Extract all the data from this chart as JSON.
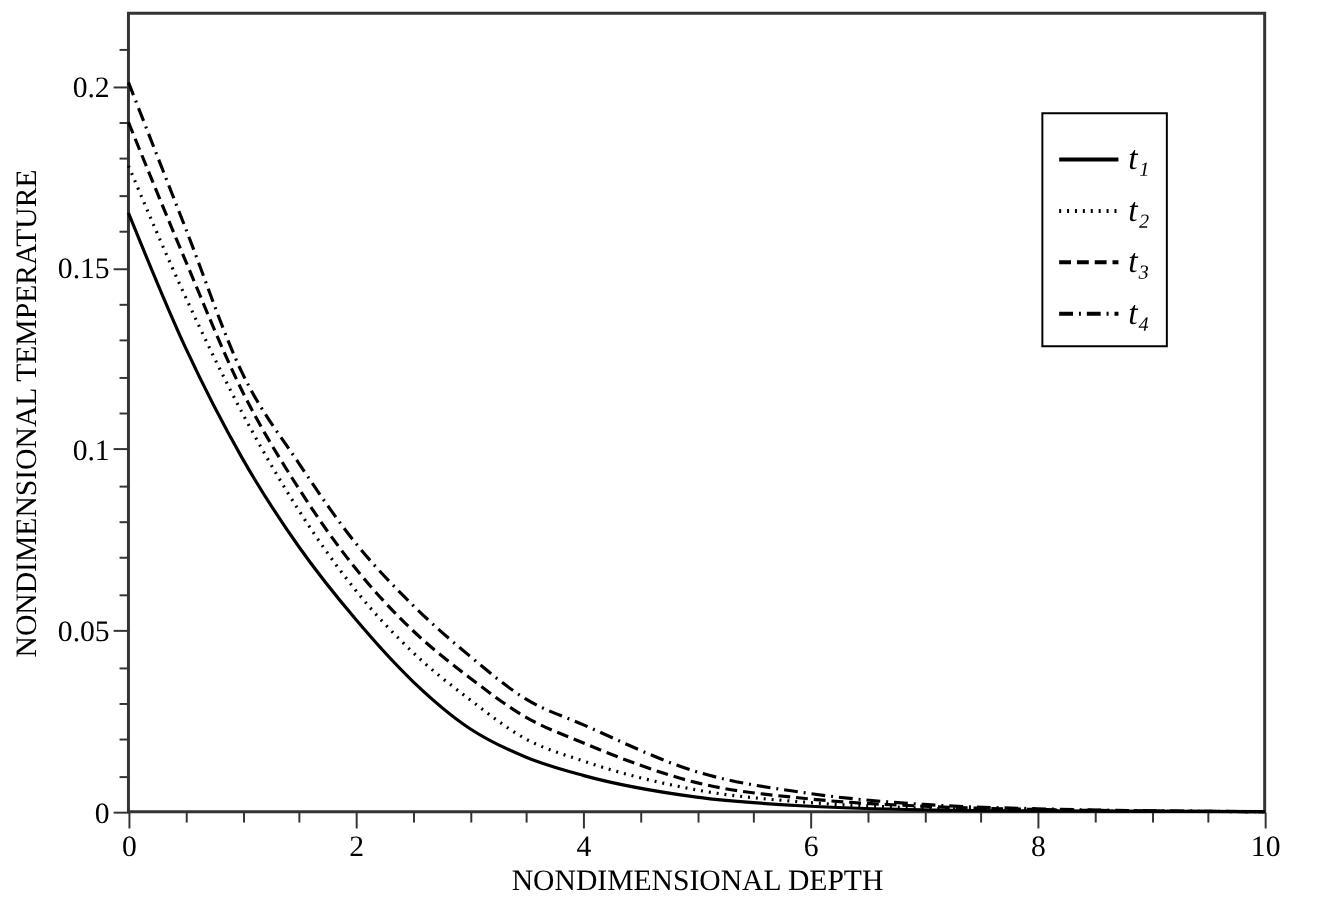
{
  "chart_data": {
    "type": "line",
    "xlabel": "NONDIMENSIONAL DEPTH",
    "ylabel": "NONDIMENSIONAL TEMPERATURE",
    "x": [
      0,
      0.5,
      1,
      1.5,
      2,
      2.5,
      3,
      3.5,
      4,
      5,
      6,
      7,
      8,
      10
    ],
    "series": [
      {
        "name": "t₁",
        "color": "#000000",
        "line_style": "solid",
        "values": [
          0.165,
          0.128,
          0.0975,
          0.073,
          0.053,
          0.036,
          0.023,
          0.015,
          0.01,
          0.004,
          0.0015,
          0.0005,
          0.0002,
          0
        ]
      },
      {
        "name": "t₂",
        "color": "#000000",
        "line_style": "dotted",
        "values": [
          0.178,
          0.142,
          0.11,
          0.083,
          0.061,
          0.044,
          0.031,
          0.02,
          0.014,
          0.006,
          0.0025,
          0.001,
          0.0004,
          0
        ]
      },
      {
        "name": "t₃",
        "color": "#000000",
        "line_style": "dashed",
        "values": [
          0.19,
          0.152,
          0.116,
          0.089,
          0.067,
          0.05,
          0.037,
          0.026,
          0.019,
          0.008,
          0.0035,
          0.0015,
          0.0006,
          0
        ]
      },
      {
        "name": "t₄",
        "color": "#000000",
        "line_style": "dashdot",
        "values": [
          0.201,
          0.161,
          0.121,
          0.096,
          0.074,
          0.057,
          0.043,
          0.031,
          0.024,
          0.011,
          0.005,
          0.002,
          0.0008,
          0
        ]
      }
    ],
    "xlim": [
      0,
      10
    ],
    "ylim": [
      0,
      0.22
    ],
    "xticks": [
      0,
      {
        "value": 0.5,
        "label": null
      },
      {
        "value": 1,
        "label": null
      },
      {
        "value": 1.5,
        "label": null
      },
      2,
      {
        "value": 2.5,
        "label": null
      },
      {
        "value": 3,
        "label": null
      },
      {
        "value": 3.5,
        "label": null
      },
      4,
      {
        "value": 4.5,
        "label": null
      },
      {
        "value": 5,
        "label": null
      },
      {
        "value": 5.5,
        "label": null
      },
      6,
      {
        "value": 6.5,
        "label": null
      },
      {
        "value": 7,
        "label": null
      },
      {
        "value": 7.5,
        "label": null
      },
      8,
      {
        "value": 8.5,
        "label": null
      },
      {
        "value": 9,
        "label": null
      },
      {
        "value": 9.5,
        "label": null
      },
      10
    ],
    "yticks": [
      0,
      {
        "value": 0.01,
        "label": null
      },
      {
        "value": 0.02,
        "label": null
      },
      {
        "value": 0.03,
        "label": null
      },
      {
        "value": 0.04,
        "label": null
      },
      0.05,
      {
        "value": 0.06,
        "label": null
      },
      {
        "value": 0.07,
        "label": null
      },
      {
        "value": 0.08,
        "label": null
      },
      {
        "value": 0.09,
        "label": null
      },
      0.1,
      {
        "value": 0.11,
        "label": null
      },
      {
        "value": 0.12,
        "label": null
      },
      {
        "value": 0.13,
        "label": null
      },
      {
        "value": 0.14,
        "label": null
      },
      0.15,
      {
        "value": 0.16,
        "label": null
      },
      {
        "value": 0.17,
        "label": null
      },
      {
        "value": 0.18,
        "label": null
      },
      {
        "value": 0.19,
        "label": null
      },
      0.2,
      {
        "value": 0.21,
        "label": null
      }
    ],
    "grid": false,
    "legend": "top right",
    "marker": "none"
  }
}
